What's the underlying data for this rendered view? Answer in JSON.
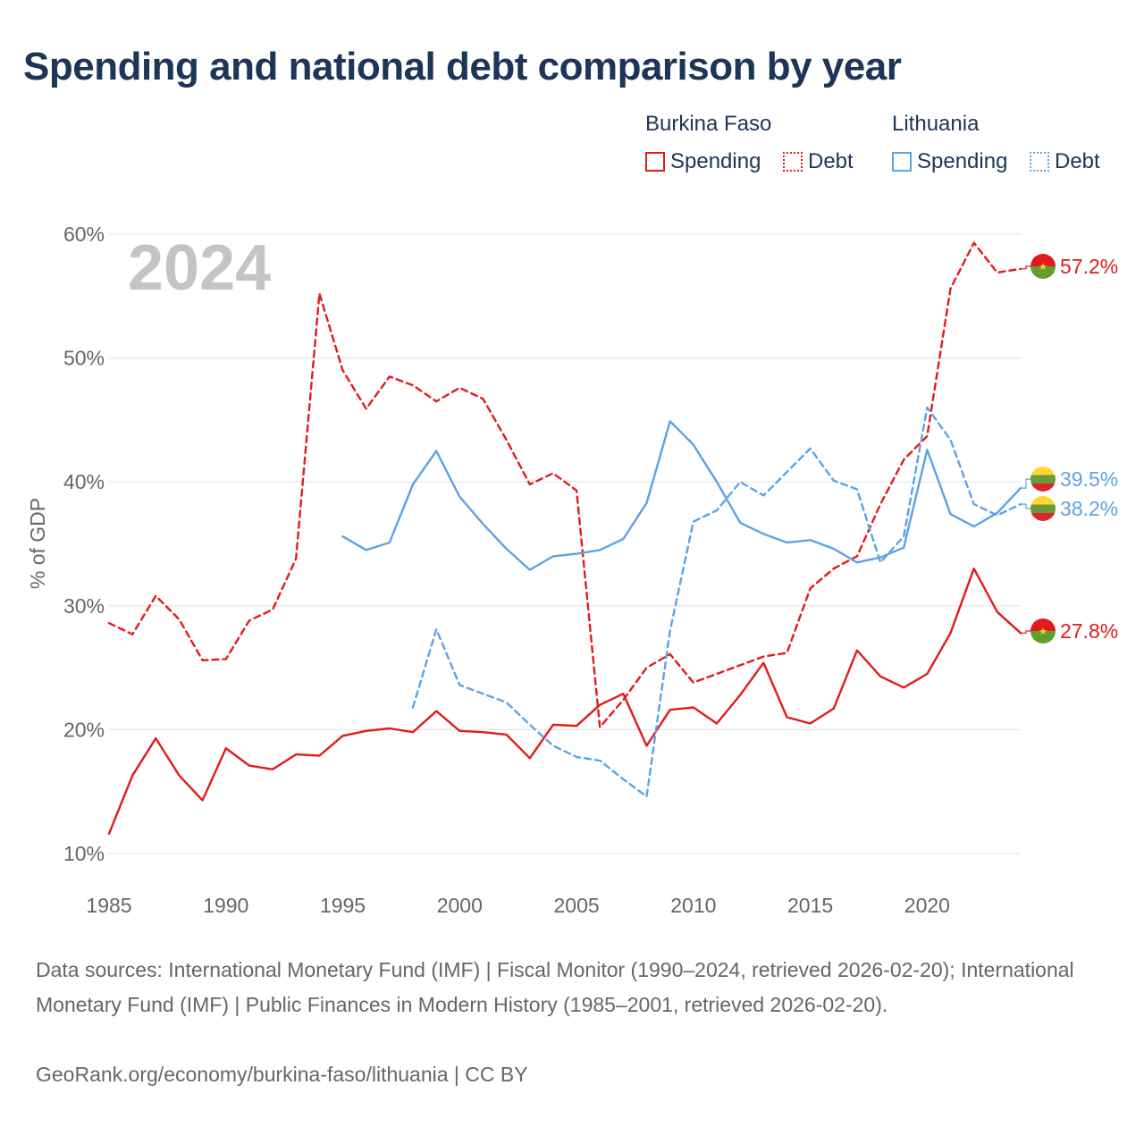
{
  "title": "Spending and national debt comparison by year",
  "legend": {
    "groups": [
      {
        "country": "Burkina Faso",
        "items": [
          {
            "label": "Spending",
            "style": "solid"
          },
          {
            "label": "Debt",
            "style": "dotted"
          }
        ],
        "color": "#e31a1c"
      },
      {
        "country": "Lithuania",
        "items": [
          {
            "label": "Spending",
            "style": "solid"
          },
          {
            "label": "Debt",
            "style": "dotted"
          }
        ],
        "color": "#5ba3e6"
      }
    ]
  },
  "year_watermark": "2024",
  "colors": {
    "burkina": "#e31a1c",
    "lithuania": "#5ba3e6",
    "grid": "#e6e6e6",
    "axis_text": "#666666",
    "title": "#1d3557",
    "watermark": "#c4c4c4"
  },
  "chart_data": {
    "type": "line",
    "title": "Spending and national debt comparison by year",
    "xlabel": "",
    "ylabel": "% of GDP",
    "xlim": [
      1985,
      2024
    ],
    "ylim": [
      10,
      60
    ],
    "x_ticks": [
      1985,
      1990,
      1995,
      2000,
      2005,
      2010,
      2015,
      2020
    ],
    "y_ticks": [
      10,
      20,
      30,
      40,
      50,
      60
    ],
    "y_tick_labels": [
      "10%",
      "20%",
      "30%",
      "40%",
      "50%",
      "60%"
    ],
    "series": [
      {
        "name": "Burkina Faso Spending",
        "country": "Burkina Faso",
        "kind": "Spending",
        "color": "#e31a1c",
        "dash": "solid",
        "x": [
          1985,
          1986,
          1987,
          1988,
          1989,
          1990,
          1991,
          1992,
          1993,
          1994,
          1995,
          1996,
          1997,
          1998,
          1999,
          2000,
          2001,
          2002,
          2003,
          2004,
          2005,
          2006,
          2007,
          2008,
          2009,
          2010,
          2011,
          2012,
          2013,
          2014,
          2015,
          2016,
          2017,
          2018,
          2019,
          2020,
          2021,
          2022,
          2023,
          2024
        ],
        "values": [
          11.6,
          16.3,
          19.3,
          16.3,
          14.3,
          18.5,
          17.1,
          16.8,
          18.0,
          17.9,
          19.5,
          19.9,
          20.1,
          19.8,
          21.5,
          19.9,
          19.8,
          19.6,
          17.7,
          20.4,
          20.3,
          22.0,
          22.9,
          18.7,
          21.6,
          21.8,
          20.5,
          22.8,
          25.4,
          21.0,
          20.5,
          21.7,
          26.4,
          24.3,
          23.4,
          24.5,
          27.8,
          33.0,
          29.5,
          27.8
        ],
        "end_label": "27.8%"
      },
      {
        "name": "Burkina Faso Debt",
        "country": "Burkina Faso",
        "kind": "Debt",
        "color": "#e31a1c",
        "dash": "dashed",
        "x": [
          1985,
          1986,
          1987,
          1988,
          1989,
          1990,
          1991,
          1992,
          1993,
          1994,
          1995,
          1996,
          1997,
          1998,
          1999,
          2000,
          2001,
          2002,
          2003,
          2004,
          2005,
          2006,
          2007,
          2008,
          2009,
          2010,
          2011,
          2012,
          2013,
          2014,
          2015,
          2016,
          2017,
          2018,
          2019,
          2020,
          2021,
          2022,
          2023,
          2024
        ],
        "values": [
          28.6,
          27.7,
          30.8,
          28.9,
          25.6,
          25.7,
          28.8,
          29.7,
          33.8,
          55.2,
          49.0,
          45.9,
          48.5,
          47.8,
          46.5,
          47.6,
          46.7,
          43.4,
          39.8,
          40.7,
          39.3,
          20.2,
          22.4,
          25.0,
          26.1,
          23.8,
          24.5,
          25.2,
          25.9,
          26.2,
          31.4,
          33.0,
          34.0,
          38.2,
          41.8,
          43.7,
          55.6,
          59.3,
          56.9,
          57.2
        ],
        "end_label": "57.2%"
      },
      {
        "name": "Lithuania Spending",
        "country": "Lithuania",
        "kind": "Spending",
        "color": "#5ba3e6",
        "dash": "solid",
        "x": [
          1995,
          1996,
          1997,
          1998,
          1999,
          2000,
          2001,
          2002,
          2003,
          2004,
          2005,
          2006,
          2007,
          2008,
          2009,
          2010,
          2011,
          2012,
          2013,
          2014,
          2015,
          2016,
          2017,
          2018,
          2019,
          2020,
          2021,
          2022,
          2023,
          2024
        ],
        "values": [
          35.6,
          34.5,
          35.1,
          39.8,
          42.5,
          38.8,
          36.6,
          34.6,
          32.9,
          34.0,
          34.2,
          34.5,
          35.4,
          38.3,
          44.9,
          43.0,
          40.0,
          36.7,
          35.8,
          35.1,
          35.3,
          34.6,
          33.5,
          33.9,
          34.7,
          42.6,
          37.4,
          36.4,
          37.5,
          39.5
        ],
        "end_label": "39.5%"
      },
      {
        "name": "Lithuania Debt",
        "country": "Lithuania",
        "kind": "Debt",
        "color": "#5ba3e6",
        "dash": "dashed",
        "x": [
          1998,
          1999,
          2000,
          2001,
          2002,
          2003,
          2004,
          2005,
          2006,
          2007,
          2008,
          2009,
          2010,
          2011,
          2012,
          2013,
          2014,
          2015,
          2016,
          2017,
          2018,
          2019,
          2020,
          2021,
          2022,
          2023,
          2024
        ],
        "values": [
          21.8,
          28.1,
          23.6,
          22.9,
          22.2,
          20.4,
          18.7,
          17.8,
          17.5,
          16.0,
          14.6,
          28.0,
          36.8,
          37.7,
          40.0,
          38.9,
          40.8,
          42.7,
          40.1,
          39.4,
          33.5,
          35.6,
          46.0,
          43.4,
          38.2,
          37.3,
          38.2
        ],
        "end_label": "38.2%"
      }
    ]
  },
  "footer": {
    "sources": "Data sources: International Monetary Fund (IMF) | Fiscal Monitor (1990–2024, retrieved 2026-02-20); International Monetary Fund (IMF) | Public Finances in Modern History (1985–2001, retrieved 2026-02-20).",
    "credit": "GeoRank.org/economy/burkina-faso/lithuania | CC BY"
  }
}
